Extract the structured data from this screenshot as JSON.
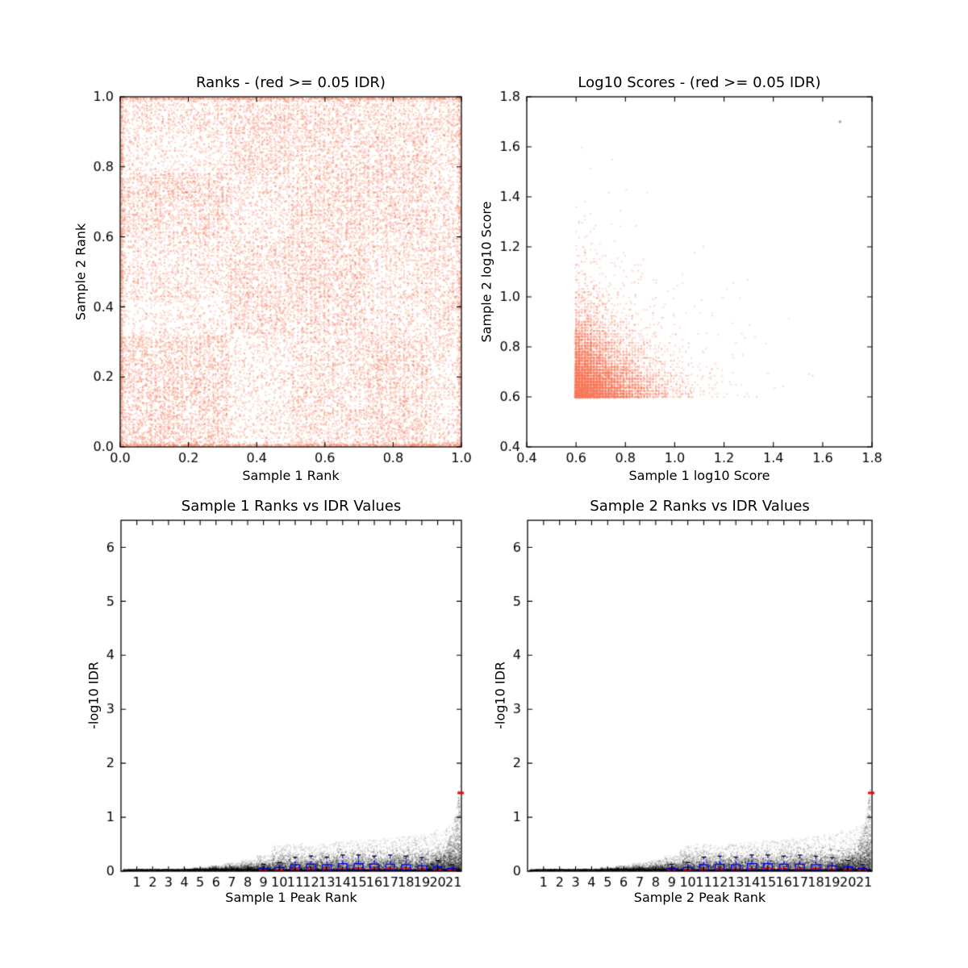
{
  "figure": {
    "background": "#ffffff",
    "description": "IDR (Irreproducible Discovery Rate) QC figure with four scatter subplots"
  },
  "plots": {
    "ranks": {
      "title": "Ranks - (red >= 0.05 IDR)",
      "xlabel": "Sample 1 Rank",
      "ylabel": "Sample 2 Rank"
    },
    "scores": {
      "title": "Log10 Scores - (red >= 0.05 IDR)",
      "xlabel": "Sample 1 log10 Score",
      "ylabel": "Sample 2 log10 Score"
    },
    "idr1": {
      "title": "Sample 1 Ranks vs IDR Values",
      "xlabel": "Sample 1 Peak Rank",
      "ylabel": "-log10 IDR"
    },
    "idr2": {
      "title": "Sample 2 Ranks vs IDR Values",
      "xlabel": "Sample 2 Peak Rank",
      "ylabel": "-log10 IDR"
    }
  },
  "colors": {
    "salmon_dot": "#f77e5f",
    "black_dot": "#000000",
    "box_blue": "#0000ff",
    "median_red": "#ff0000",
    "cap_black": "#000000",
    "gray_outlier": "#a9a9a9",
    "spine": "#000000"
  },
  "chart_data": [
    {
      "id": "ranks",
      "kind": "rank_density",
      "type": "scatter",
      "title": "Ranks - (red >= 0.05 IDR)",
      "xlabel": "Sample 1 Rank",
      "ylabel": "Sample 2 Rank",
      "xlim": [
        0,
        1
      ],
      "ylim": [
        0,
        1
      ],
      "xtick_values": [
        0,
        0.2,
        0.4,
        0.6,
        0.8,
        1.0
      ],
      "xtick_labels": [
        "0.0",
        "0.2",
        "0.4",
        "0.6",
        "0.8",
        "1.0"
      ],
      "ytick_values": [
        0,
        0.2,
        0.4,
        0.6,
        0.8,
        1.0
      ],
      "ytick_labels": [
        "0.0",
        "0.2",
        "0.4",
        "0.6",
        "0.8",
        "1.0"
      ],
      "marker": {
        "color": "#f77e5f",
        "alpha": 0.32,
        "radius": 1.15
      },
      "seed": 11,
      "snap": {
        "grid": 0.013,
        "x_prob": 0.22,
        "y_prob": 0.15
      },
      "density_grid": {
        "comment": "checkerboard-like density of salmon points, rows bottom-to-top",
        "x_edges": [
          0,
          0.32,
          0.5,
          0.72,
          0.9,
          1.0
        ],
        "y_edges": [
          0,
          0.32,
          0.42,
          0.6,
          0.78,
          0.9,
          1.0
        ],
        "density": [
          [
            0.85,
            0.35,
            0.6,
            0.8,
            0.45
          ],
          [
            0.3,
            0.75,
            0.7,
            0.45,
            0.6
          ],
          [
            0.5,
            0.7,
            0.8,
            0.5,
            0.6
          ],
          [
            0.8,
            0.45,
            0.75,
            0.75,
            0.5
          ],
          [
            0.35,
            0.75,
            0.65,
            0.75,
            0.45
          ],
          [
            0.55,
            0.8,
            0.7,
            0.6,
            0.65
          ]
        ],
        "total_points": 24000
      },
      "edge_lines": {
        "offset": 0.003,
        "bottom_n": 800,
        "left_n": 550,
        "top_n": 650,
        "right_n": 350
      }
    },
    {
      "id": "scores",
      "kind": "score_cluster",
      "type": "scatter",
      "title": "Log10 Scores - (red >= 0.05 IDR)",
      "xlabel": "Sample 1 log10 Score",
      "ylabel": "Sample 2 log10 Score",
      "xlim": [
        0.4,
        1.8
      ],
      "ylim": [
        0.4,
        1.8
      ],
      "xtick_values": [
        0.4,
        0.6,
        0.8,
        1.0,
        1.2,
        1.4,
        1.6,
        1.8
      ],
      "xtick_labels": [
        "0.4",
        "0.6",
        "0.8",
        "1.0",
        "1.2",
        "1.4",
        "1.6",
        "1.8"
      ],
      "ytick_values": [
        0.4,
        0.6,
        0.8,
        1.0,
        1.2,
        1.4,
        1.6,
        1.8
      ],
      "ytick_labels": [
        "0.4",
        "0.6",
        "0.8",
        "1.0",
        "1.2",
        "1.4",
        "1.6",
        "1.8"
      ],
      "marker": {
        "color": "#f77e5f",
        "alpha": 0.3,
        "radius": 1.15
      },
      "seed": 22,
      "cluster": {
        "origin_x": 0.595,
        "origin_y": 0.595,
        "x_scale": 0.105,
        "y_scale": 0.105,
        "n": 9500,
        "snap_grid": 0.012,
        "snap_prob": 0.5,
        "max_value": 1.72
      },
      "outlier_point": {
        "x": 1.67,
        "y": 1.7,
        "color": "#a9a9a9",
        "radius": 1.8
      }
    },
    {
      "id": "idr1",
      "kind": "idr",
      "type": "scatter",
      "title": "Sample 1 Ranks vs IDR Values",
      "xlabel": "Sample 1 Peak Rank",
      "ylabel": "-log10 IDR",
      "xlim": [
        0,
        21.5
      ],
      "ylim": [
        0,
        6.5
      ],
      "xtick_values": [
        1,
        2,
        3,
        4,
        5,
        6,
        7,
        8,
        9,
        10,
        11,
        12,
        13,
        14,
        15,
        16,
        17,
        18,
        19,
        20,
        21
      ],
      "xtick_labels": [
        "1",
        "2",
        "3",
        "4",
        "5",
        "6",
        "7",
        "8",
        "9",
        "10",
        "11",
        "12",
        "13",
        "14",
        "15",
        "16",
        "17",
        "18",
        "19",
        "20",
        "21"
      ],
      "ytick_values": [
        0,
        1,
        2,
        3,
        4,
        5,
        6
      ],
      "ytick_labels": [
        "0",
        "1",
        "2",
        "3",
        "4",
        "5",
        "6"
      ],
      "marker": {
        "color": "#000000",
        "alpha": 0.16,
        "radius": 1.0
      },
      "seed": 33,
      "baseline": {
        "n": 5200,
        "y_mean": 0.012,
        "y_sd": 0.01
      },
      "band_top": [
        0.02,
        0.02,
        0.02,
        0.025,
        0.04,
        0.06,
        0.09,
        0.12,
        0.17,
        0.28,
        0.3,
        0.28,
        0.3,
        0.32,
        0.33,
        0.34,
        0.36,
        0.38,
        0.4,
        0.45,
        0.5
      ],
      "points_per_rank": 430,
      "spray": {
        "x_start": 19.3,
        "x_end": 21.4,
        "n": 1150,
        "base_y": 0.12,
        "max_y": 1.55
      },
      "boxplot": {
        "box_color": "#0000ff",
        "median_color": "#ff0000",
        "cap_color": "#000000",
        "box_width": 0.55,
        "x": [
          1,
          2,
          3,
          4,
          5,
          6,
          7,
          8,
          9,
          10,
          11,
          12,
          13,
          14,
          15,
          16,
          17,
          18,
          19,
          20,
          20.9
        ],
        "q1": [
          0,
          0,
          0,
          0,
          0,
          0,
          0,
          0,
          0.002,
          0.005,
          0.01,
          0.01,
          0.01,
          0.012,
          0.012,
          0.012,
          0.012,
          0.012,
          0.008,
          0.008,
          0.004
        ],
        "q3": [
          0.005,
          0.005,
          0.005,
          0.005,
          0.005,
          0.006,
          0.006,
          0.007,
          0.05,
          0.07,
          0.12,
          0.13,
          0.12,
          0.14,
          0.14,
          0.13,
          0.13,
          0.12,
          0.1,
          0.08,
          0.05
        ],
        "med": [
          0.002,
          0.002,
          0.002,
          0.002,
          0.002,
          0.003,
          0.003,
          0.003,
          0.012,
          0.02,
          0.035,
          0.04,
          0.04,
          0.045,
          0.05,
          0.05,
          0.05,
          0.05,
          0.04,
          0.03,
          0.02
        ],
        "hi": [
          0.005,
          0.005,
          0.005,
          0.005,
          0.005,
          0.006,
          0.006,
          0.007,
          0.13,
          0.16,
          0.26,
          0.28,
          0.26,
          0.3,
          0.3,
          0.28,
          0.3,
          0.28,
          0.25,
          0.2,
          0.12
        ]
      },
      "outlier_dash": {
        "x": 21.45,
        "y": 1.45,
        "half_width": 0.2,
        "color": "#ff0000"
      }
    },
    {
      "id": "idr2",
      "kind": "idr",
      "type": "scatter",
      "title": "Sample 2 Ranks vs IDR Values",
      "xlabel": "Sample 2 Peak Rank",
      "ylabel": "-log10 IDR",
      "xlim": [
        0,
        21.5
      ],
      "ylim": [
        0,
        6.5
      ],
      "xtick_values": [
        1,
        2,
        3,
        4,
        5,
        6,
        7,
        8,
        9,
        10,
        11,
        12,
        13,
        14,
        15,
        16,
        17,
        18,
        19,
        20,
        21
      ],
      "xtick_labels": [
        "1",
        "2",
        "3",
        "4",
        "5",
        "6",
        "7",
        "8",
        "9",
        "10",
        "11",
        "12",
        "13",
        "14",
        "15",
        "16",
        "17",
        "18",
        "19",
        "20",
        "21"
      ],
      "ytick_values": [
        0,
        1,
        2,
        3,
        4,
        5,
        6
      ],
      "ytick_labels": [
        "0",
        "1",
        "2",
        "3",
        "4",
        "5",
        "6"
      ],
      "marker": {
        "color": "#000000",
        "alpha": 0.16,
        "radius": 1.0
      },
      "seed": 44,
      "baseline": {
        "n": 5200,
        "y_mean": 0.012,
        "y_sd": 0.01
      },
      "band_top": [
        0.02,
        0.02,
        0.02,
        0.025,
        0.04,
        0.06,
        0.09,
        0.12,
        0.17,
        0.28,
        0.3,
        0.28,
        0.3,
        0.32,
        0.33,
        0.34,
        0.36,
        0.38,
        0.4,
        0.45,
        0.5
      ],
      "points_per_rank": 430,
      "spray": {
        "x_start": 19.3,
        "x_end": 21.4,
        "n": 1150,
        "base_y": 0.12,
        "max_y": 1.55
      },
      "boxplot": {
        "box_color": "#0000ff",
        "median_color": "#ff0000",
        "cap_color": "#000000",
        "box_width": 0.55,
        "x": [
          1,
          2,
          3,
          4,
          5,
          6,
          7,
          8,
          9,
          10,
          11,
          12,
          13,
          14,
          15,
          16,
          17,
          18,
          19,
          20,
          20.9
        ],
        "q1": [
          0,
          0,
          0,
          0,
          0,
          0,
          0,
          0,
          0.002,
          0.005,
          0.01,
          0.01,
          0.01,
          0.012,
          0.012,
          0.012,
          0.012,
          0.012,
          0.008,
          0.008,
          0.004
        ],
        "q3": [
          0.005,
          0.005,
          0.005,
          0.005,
          0.005,
          0.006,
          0.006,
          0.007,
          0.05,
          0.07,
          0.12,
          0.13,
          0.12,
          0.14,
          0.14,
          0.13,
          0.13,
          0.12,
          0.1,
          0.08,
          0.05
        ],
        "med": [
          0.002,
          0.002,
          0.002,
          0.002,
          0.002,
          0.003,
          0.003,
          0.003,
          0.012,
          0.02,
          0.035,
          0.04,
          0.04,
          0.045,
          0.05,
          0.05,
          0.05,
          0.05,
          0.04,
          0.03,
          0.02
        ],
        "hi": [
          0.005,
          0.005,
          0.005,
          0.005,
          0.005,
          0.006,
          0.006,
          0.007,
          0.13,
          0.16,
          0.26,
          0.28,
          0.26,
          0.3,
          0.3,
          0.28,
          0.3,
          0.28,
          0.25,
          0.2,
          0.12
        ]
      },
      "outlier_dash": {
        "x": 21.45,
        "y": 1.45,
        "half_width": 0.2,
        "color": "#ff0000"
      }
    }
  ]
}
